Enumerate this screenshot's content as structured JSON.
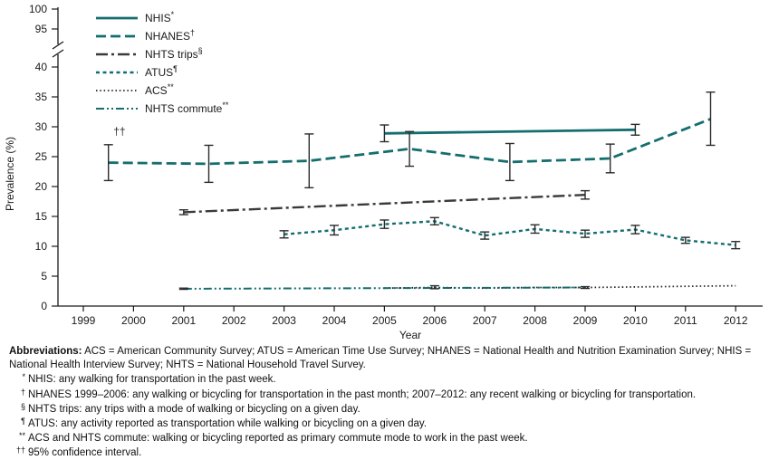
{
  "chart_data": {
    "type": "line",
    "title": "",
    "xlabel": "Year",
    "ylabel": "Prevalence (%)",
    "grid": false,
    "legend_position": "top-left-inside",
    "x_ticks": [
      1999,
      2000,
      2001,
      2002,
      2003,
      2004,
      2005,
      2006,
      2007,
      2008,
      2009,
      2010,
      2011,
      2012
    ],
    "y_axis": {
      "lower_ticks": [
        0,
        5,
        10,
        15,
        20,
        25,
        30,
        35,
        40
      ],
      "upper_ticks": [
        95,
        100
      ],
      "break_between": [
        40,
        95
      ]
    },
    "annotation": {
      "text": "††",
      "x": 1999.72,
      "y": 28.6
    },
    "series": [
      {
        "key": "nhis",
        "label": "NHIS",
        "sup": "*",
        "color": "#156e6e",
        "dash": "",
        "width": 2.8,
        "points": [
          {
            "x": 2005,
            "y": 28.9,
            "lo": 27.5,
            "hi": 30.3
          },
          {
            "x": 2010,
            "y": 29.5,
            "lo": 28.6,
            "hi": 30.4
          }
        ]
      },
      {
        "key": "nhanes",
        "label": "NHANES",
        "sup": "†",
        "color": "#156e6e",
        "dash": "11,5",
        "width": 2.8,
        "points": [
          {
            "x": 1999.5,
            "y": 24.0,
            "lo": 21.0,
            "hi": 27.0
          },
          {
            "x": 2001.5,
            "y": 23.8,
            "lo": 20.7,
            "hi": 26.9
          },
          {
            "x": 2003.5,
            "y": 24.3,
            "lo": 19.8,
            "hi": 28.8
          },
          {
            "x": 2005.5,
            "y": 26.3,
            "lo": 23.4,
            "hi": 29.2
          },
          {
            "x": 2007.5,
            "y": 24.1,
            "lo": 21.0,
            "hi": 27.2
          },
          {
            "x": 2009.5,
            "y": 24.7,
            "lo": 22.3,
            "hi": 27.1
          },
          {
            "x": 2011.5,
            "y": 31.3,
            "lo": 26.9,
            "hi": 35.8
          }
        ]
      },
      {
        "key": "nhts-trips",
        "label": "NHTS trips",
        "sup": "§",
        "color": "#3a3a3a",
        "dash": "13,4,3,4",
        "width": 2.4,
        "points": [
          {
            "x": 2001,
            "y": 15.7,
            "lo": 15.3,
            "hi": 16.1
          },
          {
            "x": 2009,
            "y": 18.6,
            "lo": 17.9,
            "hi": 19.3
          }
        ]
      },
      {
        "key": "atus",
        "label": "ATUS",
        "sup": "¶",
        "color": "#156e6e",
        "dash": "4,3.5",
        "width": 2.4,
        "points": [
          {
            "x": 2003,
            "y": 12.0,
            "lo": 11.4,
            "hi": 12.6
          },
          {
            "x": 2004,
            "y": 12.7,
            "lo": 11.9,
            "hi": 13.5
          },
          {
            "x": 2005,
            "y": 13.7,
            "lo": 13.0,
            "hi": 14.4
          },
          {
            "x": 2006,
            "y": 14.2,
            "lo": 13.6,
            "hi": 14.8
          },
          {
            "x": 2007,
            "y": 11.8,
            "lo": 11.2,
            "hi": 12.4
          },
          {
            "x": 2008,
            "y": 12.9,
            "lo": 12.2,
            "hi": 13.6
          },
          {
            "x": 2009,
            "y": 12.1,
            "lo": 11.5,
            "hi": 12.7
          },
          {
            "x": 2010,
            "y": 12.8,
            "lo": 12.1,
            "hi": 13.5
          },
          {
            "x": 2011,
            "y": 11.0,
            "lo": 10.5,
            "hi": 11.5
          },
          {
            "x": 2012,
            "y": 10.2,
            "lo": 9.6,
            "hi": 10.8
          }
        ]
      },
      {
        "key": "acs",
        "label": "ACS",
        "sup": "**",
        "color": "#222222",
        "dash": "1.5,2.8",
        "width": 1.8,
        "points": [
          {
            "x": 2005,
            "y": 3.0
          },
          {
            "x": 2006,
            "y": 3.1,
            "lo": 2.9,
            "hi": 3.4
          },
          {
            "x": 2007,
            "y": 3.0
          },
          {
            "x": 2008,
            "y": 3.1
          },
          {
            "x": 2009,
            "y": 3.1
          },
          {
            "x": 2010,
            "y": 3.2
          },
          {
            "x": 2011,
            "y": 3.3
          },
          {
            "x": 2012,
            "y": 3.4
          }
        ]
      },
      {
        "key": "nhts-commute",
        "label": "NHTS commute",
        "sup": "**",
        "color": "#156e6e",
        "dash": "9,3,2,3,2,3",
        "width": 2,
        "points": [
          {
            "x": 2001,
            "y": 2.9,
            "lo": 2.8,
            "hi": 3.0
          },
          {
            "x": 2009,
            "y": 3.1,
            "lo": 2.95,
            "hi": 3.25
          }
        ]
      }
    ]
  },
  "footnotes": {
    "abbreviations_label": "Abbreviations:",
    "abbreviations_text": "ACS = American Community Survey; ATUS = American Time Use Survey; NHANES = National Health and Nutrition Examination Survey; NHIS = National Health Interview Survey; NHTS = National Household Travel Survey.",
    "items": [
      {
        "marker": "*",
        "text": "NHIS: any walking for transportation in the past week."
      },
      {
        "marker": "†",
        "text": "NHANES 1999–2006: any walking or bicycling for transportation in the past month; 2007–2012: any recent walking or bicycling for transportation."
      },
      {
        "marker": "§",
        "text": "NHTS trips: any trips with a mode of walking or bicycling on a given day."
      },
      {
        "marker": "¶",
        "text": "ATUS: any activity reported as transportation while walking or bicycling on a given day."
      },
      {
        "marker": "**",
        "text": "ACS and NHTS commute: walking or bicycling reported as primary commute mode to work in the past week."
      },
      {
        "marker": "††",
        "text": "95% confidence interval."
      }
    ]
  }
}
